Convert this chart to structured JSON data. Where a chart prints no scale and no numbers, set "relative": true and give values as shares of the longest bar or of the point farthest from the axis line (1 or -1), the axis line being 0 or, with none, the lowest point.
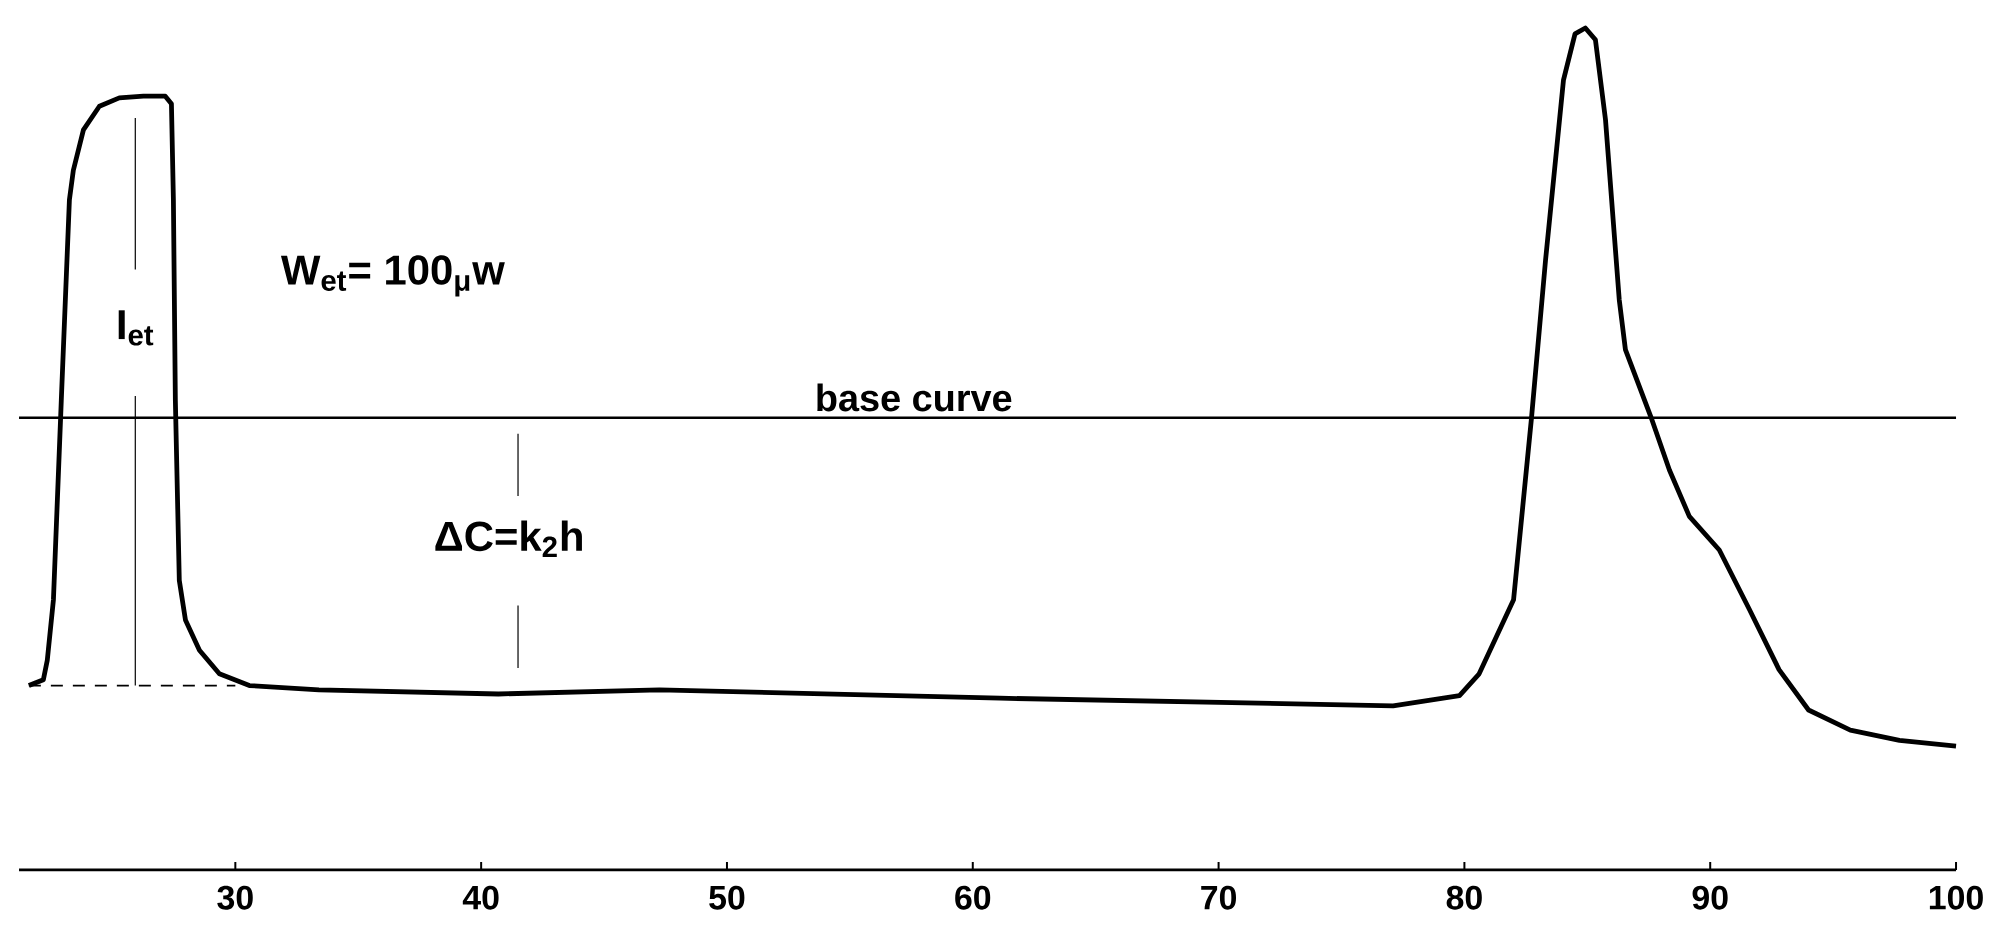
{
  "chart_data": {
    "type": "line",
    "relative": true,
    "xlim": [
      21.2,
      100
    ],
    "xticks": [
      30,
      40,
      50,
      60,
      70,
      80,
      90,
      100
    ],
    "grid": false,
    "marker": "none",
    "series": [
      {
        "color": "#000000",
        "line_style": "solid",
        "x": [
          21.6,
          22.19,
          22.35,
          22.6,
          22.92,
          23.25,
          23.41,
          23.82,
          24.47,
          25.28,
          26.26,
          27.15,
          27.4,
          27.48,
          27.56,
          27.72,
          27.97,
          28.54,
          29.35,
          30.57,
          33.4,
          40.7,
          47.25,
          61.1,
          77.1,
          79.8,
          80.6,
          82.0,
          82.73,
          83.3,
          84.03,
          84.5,
          84.92,
          85.33,
          85.74,
          86.3,
          86.55,
          87.6,
          88.34,
          89.15,
          90.37,
          91.6,
          92.8,
          94.0,
          95.7,
          97.7,
          100
        ],
        "values": [
          0.219,
          0.226,
          0.249,
          0.321,
          0.558,
          0.796,
          0.831,
          0.879,
          0.907,
          0.917,
          0.919,
          0.919,
          0.91,
          0.796,
          0.558,
          0.344,
          0.297,
          0.261,
          0.233,
          0.219,
          0.214,
          0.209,
          0.214,
          0.204,
          0.195,
          0.207,
          0.233,
          0.321,
          0.537,
          0.724,
          0.938,
          0.993,
          1.0,
          0.986,
          0.891,
          0.677,
          0.618,
          0.537,
          0.475,
          0.42,
          0.38,
          0.309,
          0.238,
          0.19,
          0.166,
          0.154,
          0.147
        ]
      },
      {
        "color": "#000000",
        "line_style": "dashed",
        "x": [
          21.6,
          30
        ],
        "values": [
          0.219,
          0.219
        ]
      },
      {
        "color": "#000000",
        "line_style": "solid",
        "x": [
          25.93,
          25.93
        ],
        "values": [
          0.893,
          0.713
        ]
      },
      {
        "color": "#000000",
        "line_style": "solid",
        "x": [
          25.93,
          25.93
        ],
        "values": [
          0.563,
          0.219
        ]
      },
      {
        "color": "#000000",
        "line_style": "solid",
        "x": [
          41.5,
          41.5
        ],
        "values": [
          0.518,
          0.444
        ]
      },
      {
        "color": "#000000",
        "line_style": "solid",
        "x": [
          41.5,
          41.5
        ],
        "values": [
          0.314,
          0.24
        ]
      }
    ],
    "ref_lines": [
      {
        "axis": "y",
        "value": 0.537,
        "label": "base curve"
      }
    ],
    "annotations": [
      "W$_{et}$= 100$_{μ}$w",
      "I$_{et}$",
      "ΔC=k$_{2}$h"
    ]
  }
}
